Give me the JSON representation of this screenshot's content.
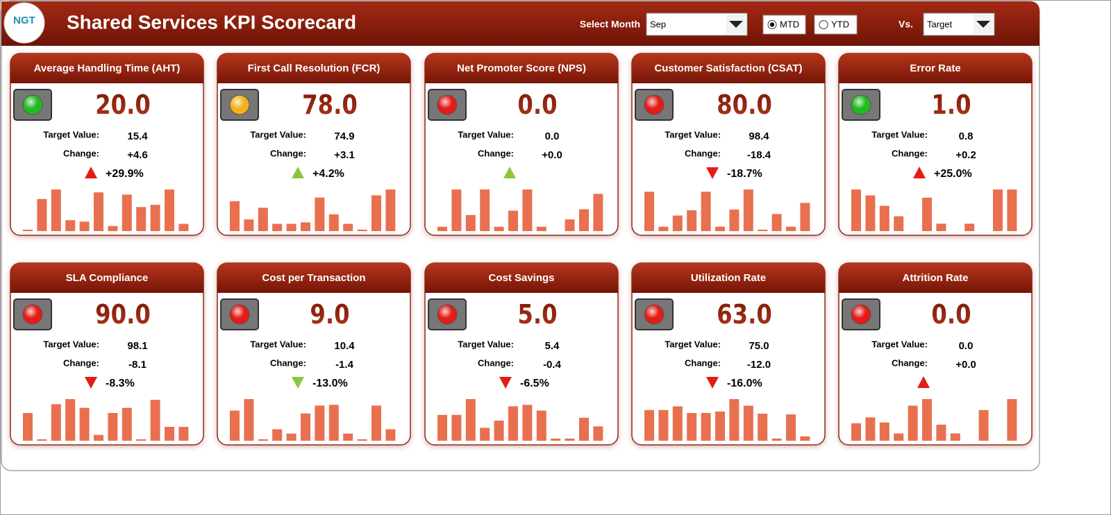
{
  "header": {
    "logo": "NGT",
    "title": "Shared Services KPI Scorecard",
    "month_label": "Select Month",
    "month": "Sep",
    "periods": [
      "MTD",
      "YTD"
    ],
    "selected_period": "MTD",
    "vs_label": "Vs.",
    "vs": "Target"
  },
  "labels": {
    "target": "Target Value:",
    "change": "Change:"
  },
  "cards": [
    {
      "title": "Average Handling Time (AHT)",
      "value": "20.0",
      "target": "15.4",
      "change": "+4.6",
      "percent": "+29.9%",
      "status": "#22bb22",
      "arrow": "up",
      "arrow_color": "#e41b17",
      "bars": [
        2,
        44,
        57,
        15,
        13,
        53,
        7,
        50,
        33,
        36,
        57,
        10
      ]
    },
    {
      "title": "First Call Resolution (FCR)",
      "value": "78.0",
      "target": "74.9",
      "change": "+3.1",
      "percent": "+4.2%",
      "status": "#f2b21b",
      "arrow": "up",
      "arrow_color": "#8cc63f",
      "bars": [
        41,
        16,
        32,
        10,
        10,
        12,
        46,
        23,
        10,
        2,
        49,
        57
      ]
    },
    {
      "title": "Net Promoter Score (NPS)",
      "value": "0.0",
      "target": "0.0",
      "change": "+0.0",
      "percent": null,
      "status": "#e41b17",
      "arrow": "up",
      "arrow_color": "#8cc63f",
      "bars": [
        6,
        57,
        22,
        57,
        6,
        28,
        57,
        6,
        0,
        16,
        30,
        51
      ]
    },
    {
      "title": "Customer Satisfaction (CSAT)",
      "value": "80.0",
      "target": "98.4",
      "change": "-18.4",
      "percent": "-18.7%",
      "status": "#e41b17",
      "arrow": "down",
      "arrow_color": "#e41b17",
      "bars": [
        53,
        6,
        21,
        28,
        53,
        6,
        29,
        56,
        2,
        23,
        6,
        38
      ]
    },
    {
      "title": "Error Rate",
      "value": "1.0",
      "target": "0.8",
      "change": "+0.2",
      "percent": "+25.0%",
      "status": "#22bb22",
      "arrow": "up",
      "arrow_color": "#e41b17",
      "bars": [
        56,
        48,
        34,
        20,
        0,
        45,
        10,
        0,
        10,
        0,
        56,
        56
      ]
    },
    {
      "title": "SLA Compliance",
      "value": "90.0",
      "target": "98.1",
      "change": "-8.1",
      "percent": "-8.3%",
      "status": "#e41b17",
      "arrow": "down",
      "arrow_color": "#e41b17",
      "bars": [
        38,
        2,
        50,
        57,
        45,
        8,
        38,
        45,
        2,
        56,
        19,
        19
      ]
    },
    {
      "title": "Cost per Transaction",
      "value": "9.0",
      "target": "10.4",
      "change": "-1.4",
      "percent": "-13.0%",
      "status": "#e41b17",
      "arrow": "down",
      "arrow_color": "#8cc63f",
      "bars": [
        42,
        58,
        2,
        16,
        10,
        38,
        49,
        50,
        10,
        2,
        49,
        16
      ]
    },
    {
      "title": "Cost Savings",
      "value": "5.0",
      "target": "5.4",
      "change": "-0.4",
      "percent": "-6.5%",
      "status": "#e41b17",
      "arrow": "down",
      "arrow_color": "#e41b17",
      "bars": [
        36,
        36,
        58,
        18,
        28,
        48,
        50,
        42,
        3,
        3,
        32,
        20
      ]
    },
    {
      "title": "Utilization Rate",
      "value": "63.0",
      "target": "75.0",
      "change": "-12.0",
      "percent": "-16.0%",
      "status": "#e41b17",
      "arrow": "down",
      "arrow_color": "#e41b17",
      "bars": [
        42,
        42,
        47,
        38,
        38,
        40,
        57,
        48,
        37,
        3,
        36,
        6
      ]
    },
    {
      "title": "Attrition Rate",
      "value": "0.0",
      "target": "0.0",
      "change": "+0.0",
      "percent": null,
      "status": "#e41b17",
      "arrow": "up",
      "arrow_color": "#e41b17",
      "bars": [
        24,
        32,
        25,
        10,
        48,
        57,
        22,
        10,
        0,
        42,
        0,
        57
      ]
    }
  ]
}
